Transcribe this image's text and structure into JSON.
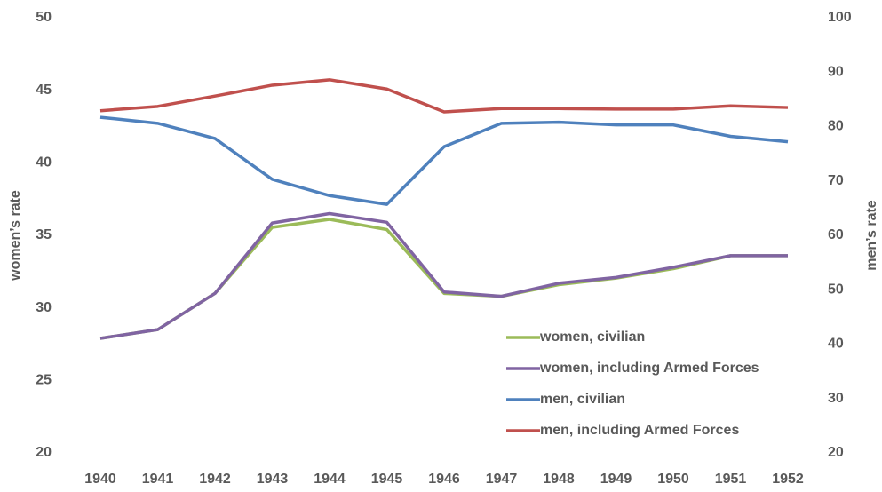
{
  "chart_data": {
    "type": "line",
    "x": [
      1940,
      1941,
      1942,
      1943,
      1944,
      1945,
      1946,
      1947,
      1948,
      1949,
      1950,
      1951,
      1952
    ],
    "xticks": [
      1940,
      1941,
      1942,
      1943,
      1944,
      1945,
      1946,
      1947,
      1948,
      1949,
      1950,
      1951,
      1952
    ],
    "xlim": [
      1940,
      1952
    ],
    "ylabel": "women’s rate",
    "y2label": "men’s rate",
    "ylim": [
      20,
      50
    ],
    "yticks": [
      20,
      25,
      30,
      35,
      40,
      45,
      50
    ],
    "y2lim": [
      20,
      100
    ],
    "y2ticks": [
      20,
      30,
      40,
      50,
      60,
      70,
      80,
      90,
      100
    ],
    "grid": false,
    "legend": "lower right",
    "series": [
      {
        "name": "women, civilian",
        "color": "#9bbb59",
        "values": [
          27.9,
          28.5,
          31.0,
          35.55,
          36.1,
          35.4,
          31.0,
          30.8,
          31.6,
          32.05,
          32.7,
          33.6,
          33.6
        ]
      },
      {
        "name": "women, including Armed Forces",
        "color": "#8064a2",
        "values": [
          27.9,
          28.5,
          31.0,
          35.85,
          36.5,
          35.9,
          31.1,
          30.8,
          31.7,
          32.1,
          32.8,
          33.6,
          33.6
        ]
      },
      {
        "name": "men, civilian",
        "color": "#4f81bd",
        "axis": "y2",
        "values": [
          81.7,
          80.6,
          77.8,
          70.3,
          67.3,
          65.7,
          76.3,
          80.6,
          80.8,
          80.3,
          80.3,
          78.2,
          77.2
        ]
      },
      {
        "name": "men, including Armed Forces",
        "color": "#c0504d",
        "axis": "y2",
        "values": [
          82.9,
          83.7,
          85.6,
          87.6,
          88.6,
          86.9,
          82.7,
          83.3,
          83.3,
          83.2,
          83.2,
          83.8,
          83.5
        ]
      }
    ]
  }
}
